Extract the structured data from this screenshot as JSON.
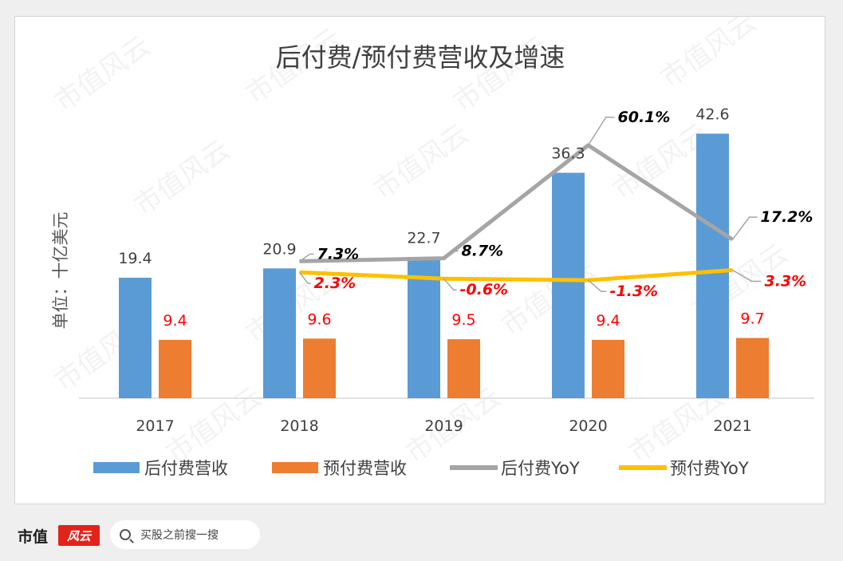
{
  "chart_data": {
    "type": "bar+line",
    "title": "后付费/预付费营收及增速",
    "ylabel": "单位：十亿美元",
    "categories": [
      "2017",
      "2018",
      "2019",
      "2020",
      "2021"
    ],
    "bar_series": [
      {
        "name": "后付费营收",
        "values": [
          19.4,
          20.9,
          22.7,
          36.3,
          42.6
        ],
        "color": "#5b9bd5",
        "label_color": "#404040"
      },
      {
        "name": "预付费营收",
        "values": [
          9.4,
          9.6,
          9.5,
          9.4,
          9.7
        ],
        "color": "#ed7d31",
        "label_color": "#ff0000"
      }
    ],
    "line_series": [
      {
        "name": "后付费YoY",
        "values": [
          null,
          7.3,
          8.7,
          60.1,
          17.2
        ],
        "labels": [
          "",
          "7.3%",
          "8.7%",
          "60.1%",
          "17.2%"
        ],
        "color": "#a5a5a5",
        "label_color": "#000000"
      },
      {
        "name": "预付费YoY",
        "values": [
          null,
          2.3,
          -0.6,
          -1.3,
          3.3
        ],
        "labels": [
          "",
          "2.3%",
          "-0.6%",
          "-1.3%",
          "3.3%"
        ],
        "color": "#ffc000",
        "label_color": "#ff0000"
      }
    ],
    "bar_ylim": [
      0,
      46
    ],
    "line_ylim": [
      -55,
      75
    ],
    "grid": false,
    "legend_position": "bottom"
  },
  "watermark": "市值风云",
  "footer": {
    "brand": "市值",
    "logo_text": "风云",
    "search_placeholder": "买股之前搜一搜"
  }
}
